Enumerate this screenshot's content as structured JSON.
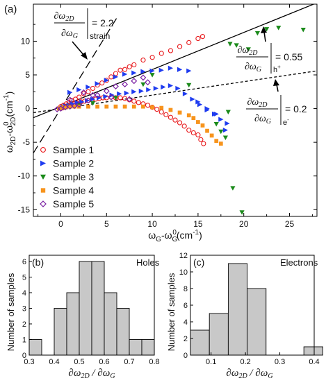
{
  "chart_data": [
    {
      "type": "scatter",
      "panel_label": "(a)",
      "xlabel": "ω_G-ω_G^0(cm^-1)",
      "ylabel": "ω_2D-ω_2D^0(cm^-1)",
      "xlim": [
        -3,
        28
      ],
      "ylim": [
        -16,
        15.5
      ],
      "xticks": [
        0,
        5,
        10,
        15,
        20,
        25
      ],
      "yticks": [
        -15,
        -10,
        -5,
        0,
        5,
        10
      ],
      "legend_position": "bottom-left",
      "series": [
        {
          "name": "Sample 1",
          "marker": "circle-open",
          "color": "#e8191c",
          "x": [
            0,
            0.3,
            0.6,
            0.9,
            1.2,
            1.6,
            2.0,
            2.5,
            3.0,
            3.5,
            4.0,
            4.5,
            5.0,
            5.5,
            6.0,
            6.5,
            7.0,
            7.5,
            8.0,
            9.0,
            10.0,
            11.0,
            12.0,
            13.0,
            14.0,
            15.0,
            15.5,
            0.2,
            0.5,
            0.8,
            1.0,
            1.4,
            1.8,
            2.2,
            2.6,
            3.0,
            3.4,
            3.8,
            4.2,
            4.6,
            5.0,
            5.5,
            6.0,
            6.5,
            7.0,
            7.5,
            8.0,
            8.5,
            9.0,
            9.5,
            10.0,
            10.5,
            11.0,
            11.5,
            12.0,
            12.5,
            13.0,
            13.5,
            14.0,
            14.5,
            15.0,
            15.3,
            15.6
          ],
          "y": [
            0.3,
            0.5,
            0.7,
            0.9,
            1.2,
            1.4,
            1.7,
            2.2,
            2.5,
            3.0,
            3.5,
            3.8,
            4.2,
            4.7,
            5.2,
            5.7,
            5.8,
            6.2,
            6.5,
            7.2,
            7.6,
            8.2,
            8.6,
            9.2,
            9.8,
            10.4,
            10.7,
            0.1,
            0.3,
            0.4,
            0.5,
            0.7,
            0.8,
            1.0,
            1.1,
            1.2,
            1.3,
            1.4,
            1.5,
            1.6,
            1.6,
            1.7,
            1.6,
            1.6,
            1.5,
            1.3,
            1.1,
            0.9,
            0.7,
            0.5,
            0.2,
            -0.1,
            -0.5,
            -0.9,
            -1.3,
            -1.7,
            -2.1,
            -2.6,
            -3.2,
            -3.6,
            -3.9,
            -4.6,
            -5.2
          ]
        },
        {
          "name": "Sample 2",
          "marker": "triangle-right",
          "color": "#1f3cf0",
          "x": [
            0.2,
            0.5,
            0.9,
            1.3,
            1.8,
            2.3,
            2.9,
            3.5,
            4.2,
            4.9,
            5.6,
            6.4,
            7.2,
            8.0,
            8.8,
            9.6,
            10.4,
            11.2,
            12.0,
            12.8,
            13.6,
            14.4,
            15.2,
            16.0,
            16.8,
            17.5,
            18.2,
            1.0,
            2.0,
            3.0,
            4.0,
            5.0,
            6.0,
            7.0,
            8.0,
            9.0,
            10.0,
            11.0,
            12.0,
            13.0,
            14.0,
            15.0,
            16.0,
            17.0,
            18.0
          ],
          "y": [
            0.2,
            0.4,
            0.5,
            0.7,
            0.9,
            1.0,
            1.2,
            1.4,
            1.6,
            1.8,
            2.0,
            2.2,
            2.3,
            2.5,
            2.6,
            2.8,
            3.0,
            3.2,
            3.4,
            3.0,
            2.2,
            1.4,
            0.6,
            -0.2,
            -0.8,
            -1.6,
            -2.2,
            2.4,
            2.8,
            3.2,
            3.7,
            4.2,
            4.7,
            5.1,
            5.3,
            5.5,
            5.6,
            5.7,
            6.0,
            5.8,
            5.6,
            1.0,
            0.0,
            -0.8,
            -3.2
          ]
        },
        {
          "name": "Sample 3",
          "marker": "triangle-down",
          "color": "#1a8a1a",
          "x": [
            0.3,
            1.0,
            2.0,
            3.5,
            6.0,
            9.0,
            10.0,
            14.0,
            17.0,
            17.5,
            18.0,
            18.3,
            18.5,
            18.8,
            19.2,
            19.8,
            20.5,
            21.5,
            22.5,
            23.8,
            26.5
          ],
          "y": [
            0.2,
            0.3,
            0.5,
            0.8,
            1.6,
            3.6,
            5.0,
            3.5,
            -2.3,
            -3.4,
            -4.3,
            -0.5,
            9.6,
            -11.8,
            9.4,
            -15.4,
            8.8,
            11.2,
            11.8,
            12.0,
            11.7
          ]
        },
        {
          "name": "Sample 4",
          "marker": "square",
          "color": "#f7941d",
          "x": [
            -0.2,
            0.0,
            0.3,
            0.6,
            1.0,
            1.5,
            2.0,
            3.0,
            4.0,
            5.0,
            6.0,
            7.0,
            8.0,
            9.0,
            10.0,
            11.0,
            12.0,
            13.0,
            14.0,
            14.5,
            15.0,
            15.5,
            16.0,
            16.5,
            17.0,
            17.5
          ],
          "y": [
            0.0,
            0.1,
            0.2,
            0.2,
            0.3,
            0.3,
            0.3,
            0.3,
            0.3,
            0.3,
            0.3,
            0.3,
            0.3,
            0.3,
            0.2,
            0.1,
            -0.2,
            -0.6,
            -1.0,
            -1.4,
            -2.0,
            -2.5,
            -3.3,
            -4.0,
            -4.8,
            -5.2
          ]
        },
        {
          "name": "Sample 5",
          "marker": "diamond-open",
          "color": "#7a1fa2",
          "x": [
            -0.4,
            0.0,
            0.5,
            1.0,
            1.5,
            2.0,
            3.0,
            4.0,
            5.0,
            6.0,
            7.0,
            8.0,
            9.0,
            9.5,
            1.0,
            2.5,
            3.5,
            5.5,
            7.5
          ],
          "y": [
            -0.1,
            0.0,
            0.2,
            0.3,
            0.4,
            0.6,
            1.2,
            2.0,
            2.6,
            3.3,
            3.6,
            4.1,
            4.6,
            3.9,
            1.3,
            2.4,
            2.0,
            1.7,
            1.4
          ]
        }
      ],
      "lines": [
        {
          "id": "strain",
          "style": "long-dash",
          "slope": 2.2,
          "x_range": [
            -3,
            6.2
          ]
        },
        {
          "id": "holes",
          "style": "solid",
          "slope": 0.55,
          "intercept": 0.3,
          "x_range": [
            -3,
            28
          ]
        },
        {
          "id": "electrons",
          "style": "short-dash",
          "slope": 0.2,
          "intercept": 0.0,
          "x_range": [
            -3,
            28
          ]
        }
      ],
      "annotations": [
        {
          "id": "strain",
          "value": "= 2.2",
          "subscript": "strain"
        },
        {
          "id": "holes",
          "value": "= 0.55",
          "subscript": "h+"
        },
        {
          "id": "electrons",
          "value": "= 0.2",
          "subscript": "e-"
        }
      ]
    },
    {
      "type": "bar",
      "panel_label": "(b)",
      "annotation": "Holes",
      "xlabel": "∂ω2D / ∂ωG",
      "ylabel": "Number of samples",
      "xlim": [
        0.3,
        0.8
      ],
      "ylim": [
        0,
        6.4
      ],
      "bin_width": 0.05,
      "xticks": [
        "0.3",
        "0.4",
        "0.5",
        "0.6",
        "0.7",
        "0.8"
      ],
      "yticks": [
        "0",
        "1",
        "2",
        "3",
        "4",
        "5",
        "6"
      ],
      "bin_starts": [
        0.3,
        0.35,
        0.4,
        0.45,
        0.5,
        0.55,
        0.6,
        0.65,
        0.7,
        0.75
      ],
      "values": [
        1,
        0,
        3,
        4,
        6,
        6,
        4,
        3,
        1,
        1
      ],
      "bar_color": "#c8c8c8"
    },
    {
      "type": "bar",
      "panel_label": "(c)",
      "annotation": "Electrons",
      "xlabel": "∂ω2D / ∂ωG",
      "ylabel": "Number of samples",
      "xlim": [
        0.04,
        0.4
      ],
      "ylim": [
        0,
        12
      ],
      "bin_width": 0.055,
      "xticks": [
        "0.1",
        "0.2",
        "0.3",
        "0.4"
      ],
      "yticks": [
        "0",
        "2",
        "4",
        "6",
        "8",
        "10",
        "12"
      ],
      "bin_starts": [
        0.04,
        0.095,
        0.15,
        0.205,
        0.26,
        0.315,
        0.37
      ],
      "values": [
        3,
        5,
        11,
        8,
        0,
        0,
        1
      ],
      "bar_color": "#c8c8c8"
    }
  ]
}
